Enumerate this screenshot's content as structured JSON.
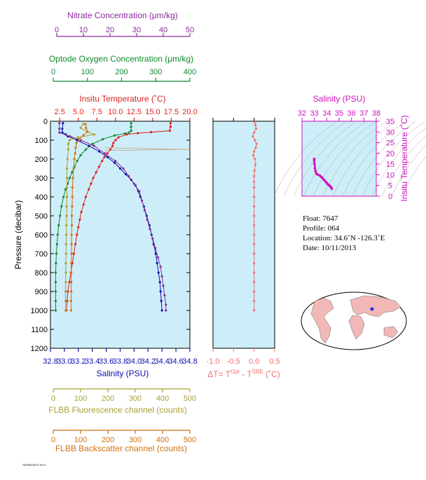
{
  "colors": {
    "panel_bg": "#cdeef8",
    "nitrate": "#8a2a9a",
    "oxygen": "#0f8a2e",
    "temperature": "#e02020",
    "salinity": "#1010b0",
    "fluorescence": "#a8a032",
    "backscatter": "#d07010",
    "delta_t": "#f07070",
    "ts_salinity": "#d010c0",
    "grid_line": "#909090",
    "map_land": "#f2b8b8"
  },
  "top_axes": {
    "nitrate": {
      "label": "Nitrate Concentration (μm/kg)",
      "ticks": [
        "0",
        "10",
        "20",
        "30",
        "40",
        "50"
      ]
    },
    "oxygen": {
      "label": "Optode Oxygen Concentration (μm/kg)",
      "ticks": [
        "0",
        "100",
        "200",
        "300",
        "400"
      ]
    },
    "temperature": {
      "label": "Insitu Temperature (˚C)",
      "ticks": [
        "2.5",
        "5.0",
        "7.5",
        "10.0",
        "12.5",
        "15.0",
        "17.5",
        "20.0"
      ]
    }
  },
  "bottom_axes": {
    "salinity": {
      "label": "Salinity (PSU)",
      "ticks": [
        "32.8",
        "33.0",
        "33.2",
        "33.4",
        "33.6",
        "33.8",
        "34.0",
        "34.2",
        "34.4",
        "34.6",
        "34.8"
      ]
    },
    "fluorescence": {
      "label": "FLBB Fluorescence channel (counts)",
      "ticks": [
        "0",
        "100",
        "200",
        "300",
        "400",
        "500"
      ]
    },
    "backscatter": {
      "label": "FLBB Backscatter channel (counts)",
      "ticks": [
        "0",
        "100",
        "200",
        "300",
        "400",
        "500"
      ]
    }
  },
  "pressure_axis": {
    "label": "Pressure (decibar)",
    "ticks": [
      "0",
      "100",
      "200",
      "300",
      "400",
      "500",
      "600",
      "700",
      "800",
      "900",
      "1000",
      "1100",
      "1200"
    ]
  },
  "delta_axis": {
    "label_parts": [
      "ΔT= T",
      "Opt",
      " - T",
      "SBE",
      " (˚C)"
    ],
    "ticks": [
      "-1.0",
      "-0.5",
      "0.0",
      "0.5"
    ]
  },
  "ts_plot": {
    "top_label": "Salinity (PSU)",
    "top_ticks": [
      "32",
      "33",
      "34",
      "35",
      "36",
      "37",
      "38"
    ],
    "right_label": "Insitu Temperature (˚C)",
    "right_ticks": [
      "0",
      "5",
      "10",
      "15",
      "20",
      "25",
      "30",
      "35"
    ]
  },
  "info": {
    "float": "Float:  7647",
    "profile": "Profile:  064",
    "location": "Location:  34.6˚N  -126.3˚E",
    "date": "Date:  10/11/2013"
  },
  "footer_text": "7647064/2013-10-11",
  "chart_data": [
    {
      "type": "line",
      "title": "",
      "ylabel": "Pressure (decibar)",
      "ylim": [
        1200,
        0
      ],
      "y_direction": "inverted",
      "series": [
        {
          "name": "Insitu Temperature (˚C)",
          "xlim": [
            1.25,
            20.0
          ],
          "points": [
            [
              17.4,
              10
            ],
            [
              17.4,
              30
            ],
            [
              17.3,
              50
            ],
            [
              14.8,
              58
            ],
            [
              13.0,
              63
            ],
            [
              11.5,
              70
            ],
            [
              10.4,
              85
            ],
            [
              10.0,
              100
            ],
            [
              9.7,
              115
            ],
            [
              9.6,
              130
            ],
            [
              9.3,
              150
            ],
            [
              8.9,
              170
            ],
            [
              8.5,
              190
            ],
            [
              8.2,
              210
            ],
            [
              7.8,
              240
            ],
            [
              7.4,
              270
            ],
            [
              7.0,
              300
            ],
            [
              6.7,
              330
            ],
            [
              6.4,
              360
            ],
            [
              6.0,
              400
            ],
            [
              5.7,
              440
            ],
            [
              5.4,
              480
            ],
            [
              5.2,
              520
            ],
            [
              5.0,
              560
            ],
            [
              4.8,
              600
            ],
            [
              4.6,
              650
            ],
            [
              4.4,
              700
            ],
            [
              4.2,
              750
            ],
            [
              4.0,
              800
            ],
            [
              3.8,
              850
            ],
            [
              3.6,
              900
            ],
            [
              3.5,
              950
            ],
            [
              3.4,
              1000
            ]
          ]
        },
        {
          "name": "Salinity (PSU)",
          "xlim": [
            32.8,
            34.8
          ],
          "points": [
            [
              32.98,
              10
            ],
            [
              32.97,
              40
            ],
            [
              32.97,
              60
            ],
            [
              33.02,
              70
            ],
            [
              33.05,
              80
            ],
            [
              33.18,
              100
            ],
            [
              33.35,
              130
            ],
            [
              33.5,
              160
            ],
            [
              33.62,
              190
            ],
            [
              33.72,
              220
            ],
            [
              33.8,
              250
            ],
            [
              33.88,
              280
            ],
            [
              33.96,
              310
            ],
            [
              34.02,
              340
            ],
            [
              34.06,
              370
            ],
            [
              34.09,
              400
            ],
            [
              34.14,
              450
            ],
            [
              34.18,
              500
            ],
            [
              34.22,
              550
            ],
            [
              34.25,
              600
            ],
            [
              34.28,
              650
            ],
            [
              34.31,
              700
            ],
            [
              34.33,
              750
            ],
            [
              34.35,
              800
            ],
            [
              34.37,
              850
            ],
            [
              34.38,
              900
            ],
            [
              34.39,
              950
            ],
            [
              34.4,
              1000
            ]
          ]
        },
        {
          "name": "Optode Oxygen Concentration (μm/kg)",
          "xlim": [
            0,
            400
          ],
          "points": [
            [
              228,
              10
            ],
            [
              228,
              30
            ],
            [
              228,
              50
            ],
            [
              222,
              60
            ],
            [
              210,
              65
            ],
            [
              180,
              75
            ],
            [
              145,
              95
            ],
            [
              115,
              120
            ],
            [
              95,
              150
            ],
            [
              80,
              180
            ],
            [
              70,
              210
            ],
            [
              62,
              240
            ],
            [
              55,
              270
            ],
            [
              48,
              300
            ],
            [
              42,
              330
            ],
            [
              36,
              360
            ],
            [
              30,
              400
            ],
            [
              24,
              450
            ],
            [
              20,
              500
            ],
            [
              16,
              550
            ],
            [
              13,
              600
            ],
            [
              11,
              650
            ],
            [
              9,
              700
            ],
            [
              8,
              750
            ],
            [
              7,
              800
            ],
            [
              7,
              850
            ],
            [
              7,
              900
            ],
            [
              7,
              950
            ],
            [
              7,
              1000
            ]
          ]
        },
        {
          "name": "Nitrate Concentration (μm/kg)",
          "xlim": [
            0,
            50
          ],
          "points": [
            [
              1,
              10
            ],
            [
              1,
              40
            ],
            [
              1,
              60
            ],
            [
              5,
              80
            ],
            [
              9,
              100
            ],
            [
              14,
              130
            ],
            [
              18,
              170
            ],
            [
              22,
              210
            ],
            [
              25,
              250
            ],
            [
              27,
              290
            ],
            [
              29,
              330
            ],
            [
              31,
              370
            ],
            [
              32,
              420
            ],
            [
              33,
              470
            ],
            [
              34,
              520
            ],
            [
              35,
              570
            ],
            [
              36,
              620
            ],
            [
              37,
              670
            ],
            [
              38,
              720
            ],
            [
              39,
              770
            ],
            [
              39.5,
              820
            ],
            [
              40,
              870
            ],
            [
              40.5,
              920
            ],
            [
              41,
              970
            ],
            [
              41,
              1000
            ]
          ]
        },
        {
          "name": "FLBB Fluorescence channel (counts)",
          "xlim": [
            0,
            500
          ],
          "points": [
            [
              110,
              15
            ],
            [
              100,
              35
            ],
            [
              125,
              55
            ],
            [
              150,
              70
            ],
            [
              90,
              85
            ],
            [
              60,
              100
            ],
            [
              55,
              120
            ],
            [
              55,
              150
            ],
            [
              52,
              200
            ],
            [
              50,
              250
            ],
            [
              50,
              300
            ],
            [
              50,
              350
            ],
            [
              50,
              400
            ],
            [
              49,
              450
            ],
            [
              49,
              500
            ],
            [
              48,
              550
            ],
            [
              48,
              600
            ],
            [
              47,
              650
            ],
            [
              47,
              700
            ],
            [
              46,
              750
            ],
            [
              46,
              800
            ],
            [
              46,
              850
            ],
            [
              45,
              900
            ],
            [
              45,
              950
            ],
            [
              45,
              1000
            ]
          ]
        },
        {
          "name": "FLBB Backscatter channel (counts)",
          "xlim": [
            0,
            500
          ],
          "points": [
            [
              118,
              15
            ],
            [
              120,
              35
            ],
            [
              125,
              55
            ],
            [
              110,
              75
            ],
            [
              95,
              95
            ],
            [
              85,
              115
            ],
            [
              82,
              140
            ],
            [
              80,
              170
            ],
            [
              77,
              200
            ],
            [
              75,
              250
            ],
            [
              72,
              300
            ],
            [
              70,
              350
            ],
            [
              70,
              400
            ],
            [
              69,
              450
            ],
            [
              68,
              500
            ],
            [
              68,
              550
            ],
            [
              67,
              600
            ],
            [
              67,
              650
            ],
            [
              67,
              700
            ],
            [
              66,
              750
            ],
            [
              66,
              800
            ],
            [
              66,
              850
            ],
            [
              66,
              900
            ],
            [
              65,
              950
            ],
            [
              65,
              1000
            ]
          ]
        }
      ]
    },
    {
      "type": "scatter",
      "title": "",
      "xlabel": "ΔT= TOpt - TSBE (˚C)",
      "xlim": [
        -1.0,
        0.5
      ],
      "ylim": [
        1200,
        0
      ],
      "series": [
        {
          "name": "ΔT",
          "points": [
            [
              0.02,
              5
            ],
            [
              0.03,
              20
            ],
            [
              0.05,
              40
            ],
            [
              0.0,
              60
            ],
            [
              -0.03,
              80
            ],
            [
              0.02,
              100
            ],
            [
              0.06,
              120
            ],
            [
              0.04,
              140
            ],
            [
              0.0,
              160
            ],
            [
              -0.02,
              180
            ],
            [
              0.02,
              200
            ],
            [
              0.03,
              230
            ],
            [
              0.01,
              260
            ],
            [
              0.0,
              290
            ],
            [
              0.0,
              320
            ],
            [
              0.0,
              350
            ],
            [
              0.0,
              400
            ],
            [
              0.0,
              450
            ],
            [
              0.0,
              500
            ],
            [
              0.0,
              550
            ],
            [
              0.0,
              600
            ],
            [
              0.0,
              650
            ],
            [
              0.0,
              700
            ],
            [
              0.0,
              750
            ],
            [
              0.0,
              800
            ],
            [
              0.0,
              850
            ],
            [
              0.0,
              900
            ],
            [
              0.0,
              950
            ],
            [
              0.0,
              1000
            ]
          ]
        }
      ]
    },
    {
      "type": "scatter",
      "title": "",
      "xlabel": "Salinity (PSU)",
      "ylabel": "Insitu Temperature (˚C)",
      "xlim": [
        32,
        38
      ],
      "ylim": [
        0,
        35
      ],
      "series": [
        {
          "name": "T-S",
          "points": [
            [
              32.98,
              17.4
            ],
            [
              32.99,
              16.5
            ],
            [
              33.02,
              15.0
            ],
            [
              33.05,
              13.0
            ],
            [
              33.1,
              11.5
            ],
            [
              33.18,
              10.4
            ],
            [
              33.3,
              10.0
            ],
            [
              33.45,
              9.6
            ],
            [
              33.55,
              9.0
            ],
            [
              33.65,
              8.5
            ],
            [
              33.75,
              7.8
            ],
            [
              33.85,
              7.2
            ],
            [
              33.95,
              6.6
            ],
            [
              34.02,
              6.0
            ],
            [
              34.1,
              5.5
            ],
            [
              34.18,
              5.2
            ],
            [
              34.25,
              4.8
            ],
            [
              34.32,
              4.4
            ],
            [
              34.37,
              4.0
            ],
            [
              34.4,
              3.5
            ]
          ]
        }
      ]
    }
  ]
}
